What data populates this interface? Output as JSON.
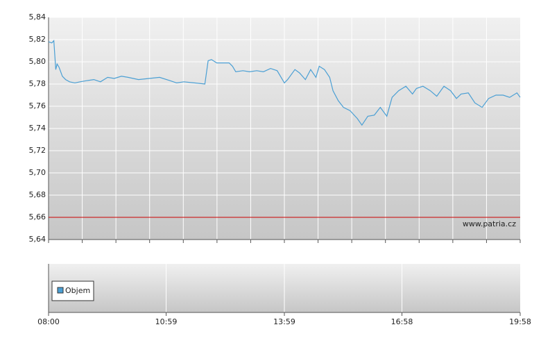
{
  "chart_data": [
    {
      "type": "line",
      "annotation": "www.patria.cz",
      "xlim": [
        "08:00",
        "19:58"
      ],
      "x": [
        "08:00",
        "08:05",
        "08:08",
        "08:11",
        "08:13",
        "08:16",
        "08:21",
        "08:26",
        "08:32",
        "08:40",
        "08:48",
        "08:58",
        "09:09",
        "09:19",
        "09:30",
        "09:40",
        "09:51",
        "10:01",
        "10:17",
        "10:33",
        "10:49",
        "11:05",
        "11:15",
        "11:26",
        "11:42",
        "11:58",
        "12:03",
        "12:08",
        "12:16",
        "12:24",
        "12:35",
        "12:40",
        "12:45",
        "12:56",
        "13:06",
        "13:17",
        "13:27",
        "13:38",
        "13:48",
        "13:59",
        "14:04",
        "14:15",
        "14:22",
        "14:31",
        "14:39",
        "14:47",
        "14:52",
        "15:00",
        "15:08",
        "15:13",
        "15:21",
        "15:29",
        "15:39",
        "15:50",
        "15:57",
        "16:06",
        "16:16",
        "16:25",
        "16:35",
        "16:43",
        "16:53",
        "17:04",
        "17:14",
        "17:20",
        "17:30",
        "17:41",
        "17:51",
        "18:02",
        "18:12",
        "18:21",
        "18:28",
        "18:39",
        "18:49",
        "19:00",
        "19:10",
        "19:21",
        "19:32",
        "19:42",
        "19:53",
        "19:58"
      ],
      "series": [
        {
          "color": "#4a9fd4",
          "values": [
            5.818,
            5.817,
            5.819,
            5.793,
            5.798,
            5.795,
            5.787,
            5.784,
            5.782,
            5.781,
            5.782,
            5.783,
            5.784,
            5.782,
            5.786,
            5.785,
            5.787,
            5.786,
            5.784,
            5.785,
            5.786,
            5.783,
            5.781,
            5.782,
            5.781,
            5.78,
            5.801,
            5.802,
            5.799,
            5.799,
            5.799,
            5.796,
            5.791,
            5.792,
            5.791,
            5.792,
            5.791,
            5.794,
            5.792,
            5.781,
            5.784,
            5.793,
            5.79,
            5.784,
            5.793,
            5.786,
            5.796,
            5.793,
            5.786,
            5.774,
            5.765,
            5.759,
            5.756,
            5.749,
            5.743,
            5.751,
            5.752,
            5.759,
            5.751,
            5.768,
            5.774,
            5.778,
            5.771,
            5.776,
            5.778,
            5.774,
            5.769,
            5.778,
            5.774,
            5.767,
            5.771,
            5.772,
            5.763,
            5.759,
            5.767,
            5.77,
            5.77,
            5.768,
            5.772,
            5.768
          ]
        }
      ],
      "ylim": [
        5.64,
        5.84
      ],
      "yticks": [
        {
          "value": 5.64,
          "label": "5,64"
        },
        {
          "value": 5.66,
          "label": "5,66"
        },
        {
          "value": 5.68,
          "label": "5,68"
        },
        {
          "value": 5.7,
          "label": "5,70"
        },
        {
          "value": 5.72,
          "label": "5,72"
        },
        {
          "value": 5.74,
          "label": "5,74"
        },
        {
          "value": 5.76,
          "label": "5,76"
        },
        {
          "value": 5.78,
          "label": "5,78"
        },
        {
          "value": 5.8,
          "label": "5,80"
        },
        {
          "value": 5.82,
          "label": "5,82"
        },
        {
          "value": 5.84,
          "label": "5,84"
        }
      ],
      "ref_line": {
        "value": 5.66,
        "color": "#cc0000"
      },
      "grid": true
    },
    {
      "type": "bar",
      "xlim": [
        "08:00",
        "19:58"
      ],
      "xticks": [
        "08:00",
        "10:59",
        "13:59",
        "16:58",
        "19:58"
      ],
      "legend_position": "left",
      "series": [
        {
          "name": "Objem",
          "color": "#4a9fd4",
          "values": []
        }
      ],
      "grid": true
    }
  ]
}
